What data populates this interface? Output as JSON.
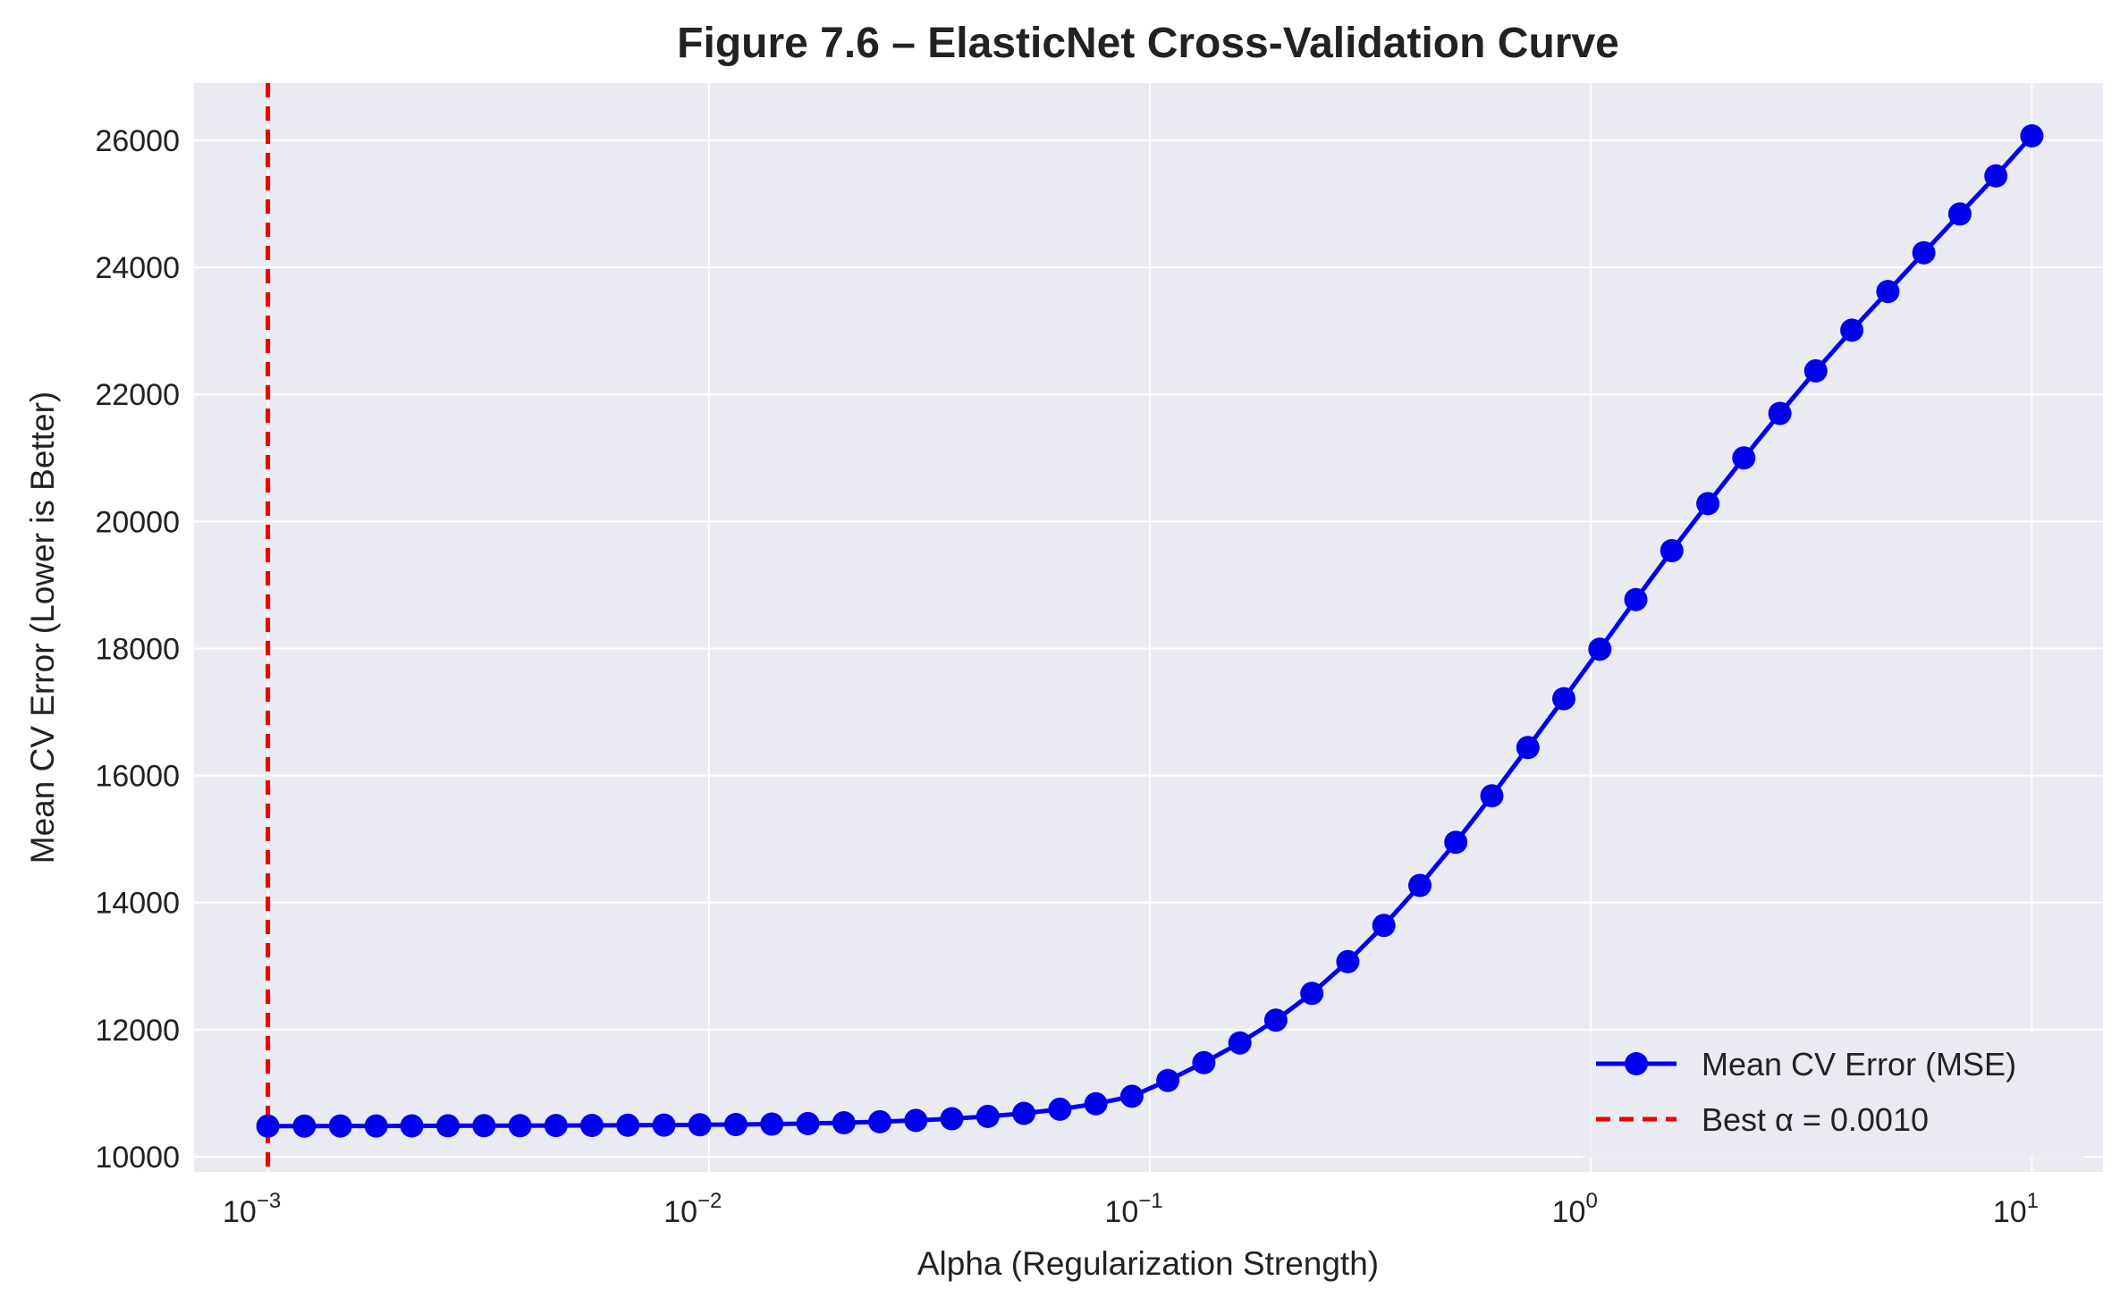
{
  "chart_data": {
    "type": "line",
    "title": "Figure 7.6 – ElasticNet Cross-Validation Curve",
    "xlabel": "Alpha (Regularization Strength)",
    "ylabel": "Mean CV Error (Lower is Better)",
    "xscale": "log",
    "xlim": [
      0.00068,
      14.5
    ],
    "ylim": [
      9760,
      26900
    ],
    "x_ticks": [
      0.001,
      0.01,
      0.1,
      1,
      10
    ],
    "x_tick_labels": [
      {
        "base": "10",
        "exp": "−3"
      },
      {
        "base": "10",
        "exp": "−2"
      },
      {
        "base": "10",
        "exp": "−1"
      },
      {
        "base": "10",
        "exp": "0"
      },
      {
        "base": "10",
        "exp": "1"
      }
    ],
    "y_ticks": [
      10000,
      12000,
      14000,
      16000,
      18000,
      20000,
      22000,
      24000,
      26000
    ],
    "y_tick_labels": [
      "10000",
      "12000",
      "14000",
      "16000",
      "18000",
      "20000",
      "22000",
      "24000",
      "26000"
    ],
    "grid": true,
    "legend_position": "lower-right",
    "series": [
      {
        "name": "Mean CV Error (MSE)",
        "color": "#0000ee",
        "marker": "circle",
        "x": [
          0.001,
          0.00121,
          0.00146,
          0.00176,
          0.00212,
          0.00256,
          0.00309,
          0.00373,
          0.0045,
          0.00543,
          0.00655,
          0.00791,
          0.00954,
          0.01151,
          0.01389,
          0.01677,
          0.02024,
          0.02442,
          0.02947,
          0.03556,
          0.04292,
          0.05179,
          0.06251,
          0.07543,
          0.09103,
          0.10985,
          0.13257,
          0.15999,
          0.19307,
          0.233,
          0.28118,
          0.33932,
          0.40949,
          0.49417,
          0.59636,
          0.71969,
          0.86851,
          1.04811,
          1.26486,
          1.52642,
          1.84207,
          2.223,
          2.6827,
          3.23746,
          3.90694,
          4.71487,
          5.68987,
          6.86649,
          8.28643,
          10.0
        ],
        "y": [
          10480,
          10482,
          10483,
          10484,
          10485,
          10486,
          10487,
          10488,
          10490,
          10492,
          10494,
          10497,
          10501,
          10506,
          10513,
          10522,
          10534,
          10549,
          10570,
          10597,
          10634,
          10682,
          10747,
          10833,
          10950,
          11200,
          11480,
          11790,
          12150,
          12570,
          13070,
          13640,
          14270,
          14950,
          15680,
          16440,
          17210,
          17990,
          18770,
          19540,
          20280,
          21000,
          21700,
          22370,
          23010,
          23620,
          24230,
          24840,
          25440,
          26070
        ]
      }
    ],
    "reference_lines": [
      {
        "name": "Best α = 0.0010",
        "orientation": "vertical",
        "x": 0.001,
        "color": "#ee0000",
        "style": "dashed"
      }
    ],
    "background_color": "#eaeaf2",
    "grid_color": "#ffffff"
  }
}
